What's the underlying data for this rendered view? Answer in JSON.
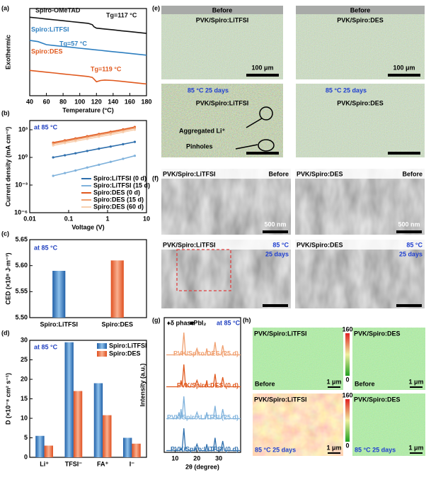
{
  "figure_labels": [
    "(a)",
    "(b)",
    "(c)",
    "(d)",
    "(e)",
    "(f)",
    "(g)",
    "(h)"
  ],
  "chart_data": [
    {
      "type": "line",
      "ylabel": "Exothermic",
      "xlabel": "Temperature (°C)",
      "xlim": [
        40,
        180
      ],
      "xticks": [
        40,
        60,
        80,
        100,
        120,
        140,
        160,
        180
      ],
      "ylim": [
        0,
        10
      ],
      "x": [
        40,
        50,
        60,
        70,
        80,
        90,
        100,
        110,
        115,
        117,
        120,
        125,
        130,
        140,
        150,
        160,
        170,
        180
      ],
      "series": [
        {
          "name": "Spiro-OMeTAD",
          "color": "#111111",
          "values": [
            9.0,
            8.9,
            8.8,
            8.7,
            8.6,
            8.5,
            8.4,
            8.3,
            8.15,
            7.9,
            7.75,
            7.7,
            7.65,
            7.55,
            7.45,
            7.35,
            7.25,
            7.15
          ]
        },
        {
          "name": "Spiro:LiTFSI",
          "color": "#2e7fc0",
          "values": [
            6.35,
            6.2,
            5.85,
            5.75,
            5.65,
            5.55,
            5.45,
            5.35,
            5.3,
            5.28,
            5.25,
            5.2,
            5.15,
            5.05,
            4.95,
            4.85,
            4.75,
            4.65
          ]
        },
        {
          "name": "Spiro:DES",
          "color": "#e0591e",
          "values": [
            2.9,
            2.8,
            2.7,
            2.6,
            2.5,
            2.4,
            2.3,
            2.2,
            2.1,
            1.9,
            1.6,
            1.75,
            1.8,
            1.75,
            1.65,
            1.55,
            1.45,
            1.35
          ]
        }
      ],
      "annotations": [
        "Tg=117 °C",
        "Tg=57 °C",
        "Tg=119 °C"
      ],
      "legend": "inline"
    },
    {
      "type": "line",
      "ylabel": "Current density (mA cm⁻²)",
      "xlabel": "Voltage (V)",
      "xlog": true,
      "ylog": true,
      "xlim": [
        0.01,
        10
      ],
      "xticks": [
        0.01,
        0.1,
        1,
        10
      ],
      "ylim": [
        1e-06,
        10000
      ],
      "yticks": [
        {
          "value": 1e-06,
          "label": "10⁻⁶"
        },
        {
          "value": 0.001,
          "label": "10⁻³"
        },
        {
          "value": 1,
          "label": "10⁰"
        },
        {
          "value": 1000,
          "label": "10³"
        }
      ],
      "x": [
        0.04,
        0.08,
        0.15,
        0.3,
        0.6,
        1.2,
        2.5,
        5
      ],
      "series": [
        {
          "name": "Spiro:LiTFSI (0 d)",
          "color": "#2e6fad",
          "values": [
            1,
            1.7,
            2.8,
            5,
            8.8,
            15,
            27,
            48
          ]
        },
        {
          "name": "Spiro:LiTFSI (15 d)",
          "color": "#7fb2dc",
          "values": [
            0.01,
            0.02,
            0.038,
            0.08,
            0.16,
            0.33,
            0.7,
            1.5
          ]
        },
        {
          "name": "Spiro:DES (0 d)",
          "color": "#e0591e",
          "values": [
            40,
            70,
            115,
            200,
            350,
            610,
            1100,
            2000
          ]
        },
        {
          "name": "Spiro:DES (15 d)",
          "color": "#f0a070",
          "values": [
            30,
            52,
            86,
            150,
            260,
            450,
            820,
            1500
          ]
        },
        {
          "name": "Spiro:DES (60 d)",
          "color": "#f8cfae",
          "values": [
            20,
            35,
            58,
            100,
            175,
            300,
            550,
            1000
          ]
        }
      ],
      "annotations": [
        "at 85 °C"
      ],
      "legend": "lower right"
    },
    {
      "type": "bar",
      "ylabel": "CED (×10⁸ J·m⁻³)",
      "categories": [
        "Spiro:LiTFSI",
        "Spiro:DES"
      ],
      "values": [
        5.59,
        5.61
      ],
      "colors": [
        "#3a7fc2",
        "#ee6a3c"
      ],
      "ylim": [
        5.5,
        5.65
      ],
      "yticks": [
        {
          "value": 5.5,
          "label": "5.50"
        },
        5.55,
        {
          "value": 5.6,
          "label": "5.60"
        },
        5.65
      ],
      "annotations": [
        "at 85 °C"
      ]
    },
    {
      "type": "bar",
      "ylabel": "D (×10⁻⁸ cm² s⁻¹)",
      "categories": [
        "Li⁺",
        "TFSI⁻",
        "FA⁺",
        "I⁻"
      ],
      "series": [
        {
          "name": "Spiro:LiTFSI",
          "color": "#3a7fc2",
          "values": [
            5.5,
            29.5,
            19,
            5
          ]
        },
        {
          "name": "Spiro:DES",
          "color": "#ee6a3c",
          "values": [
            3,
            17,
            10.8,
            3.5
          ]
        }
      ],
      "ylim": [
        0,
        30
      ],
      "yticks": [
        0,
        5,
        10,
        15,
        20,
        25,
        30
      ],
      "annotations": [
        "at 85 °C"
      ],
      "legend": "upper right"
    },
    {
      "type": "ridgeline",
      "ylabel": "Intensity (a.u.)",
      "xlabel": "2θ (degree)",
      "xlim": [
        5,
        40
      ],
      "xticks": [
        10,
        20,
        30
      ],
      "ylim": [
        0,
        10
      ],
      "x": [
        6,
        11,
        11.8,
        12.3,
        12.7,
        13.2,
        14,
        14.8,
        19,
        20,
        21,
        24,
        24.5,
        25,
        27.5,
        28.3,
        29,
        31,
        31.8,
        32.6,
        35,
        40
      ],
      "series": [
        {
          "name": "PVK/Spiro:DES (25 d)",
          "color": "#f0a070",
          "values": [
            1,
            1,
            1,
            1,
            1.3,
            1,
            8,
            1,
            1,
            3,
            1,
            1,
            3,
            1,
            1,
            5,
            1,
            1,
            4,
            1,
            1,
            1
          ]
        },
        {
          "name": "PVK/Spiro:DES (0 d)",
          "color": "#e0591e",
          "values": [
            1,
            1,
            1,
            1,
            3,
            1,
            8,
            1,
            1,
            3,
            1,
            1,
            3,
            1,
            1,
            5,
            1,
            1,
            4,
            1,
            1,
            1
          ]
        },
        {
          "name": "PVK/Spiro:LiTFSI (25 d)",
          "color": "#7fb2dc",
          "values": [
            1,
            1,
            3,
            1,
            4,
            1,
            8,
            1,
            1,
            3,
            1,
            1,
            3,
            1,
            1,
            5,
            1,
            1,
            4,
            1,
            1,
            1
          ]
        },
        {
          "name": "PVK/Spiro:LiTFSI (0 d)",
          "color": "#2e6fad",
          "values": [
            1,
            1,
            1,
            1,
            1.5,
            1,
            8,
            1,
            1,
            3,
            1,
            1,
            3,
            1,
            1,
            5,
            1,
            1,
            4,
            1,
            1,
            1
          ]
        }
      ],
      "annotations": [
        "♦δ phase",
        "■PbI₂",
        "at 85 °C"
      ]
    }
  ],
  "panel_e": [
    {
      "header": "Before",
      "label": "PVK/Spiro:LiTFSI",
      "scale_bar": "100 μm"
    },
    {
      "header": "Before",
      "label": "PVK/Spiro:DES",
      "scale_bar": "100 μm"
    },
    {
      "header": "85 °C 25 days",
      "label": "PVK/Spiro:LiTFSI",
      "notes": [
        "Aggregated Li⁺",
        "Pinholes"
      ]
    },
    {
      "header": "85 °C 25 days",
      "label": "PVK/Spiro:DES"
    }
  ],
  "panel_f": [
    {
      "label": "PVK/Spiro:LiTFSI",
      "condition": [
        "Before"
      ],
      "scale_bar": "500 nm"
    },
    {
      "label": "PVK/Spiro:DES",
      "condition": [
        "Before"
      ],
      "scale_bar": "500 nm"
    },
    {
      "label": "PVK/Spiro:LiTFSI",
      "condition": [
        "85 °C",
        "25 days"
      ]
    },
    {
      "label": "PVK/Spiro:DES",
      "condition": [
        "85 °C",
        "25 days"
      ]
    }
  ],
  "panel_h": {
    "images": [
      {
        "label": "PVK/Spiro:LiTFSI",
        "condition": "Before",
        "scale_bar": "1 μm"
      },
      {
        "label": "PVK/Spiro:DES",
        "condition": "Before",
        "scale_bar": "1 μm"
      },
      {
        "label": "PVK/Spiro:LiTFSI",
        "condition": "85 °C  25 days",
        "scale_bar": "1 μm"
      },
      {
        "label": "PVK/Spiro:DES",
        "condition": "85 °C  25 days",
        "scale_bar": "1 μm"
      }
    ],
    "colorbars": [
      [
        160,
        0
      ],
      [
        160,
        0
      ]
    ]
  }
}
